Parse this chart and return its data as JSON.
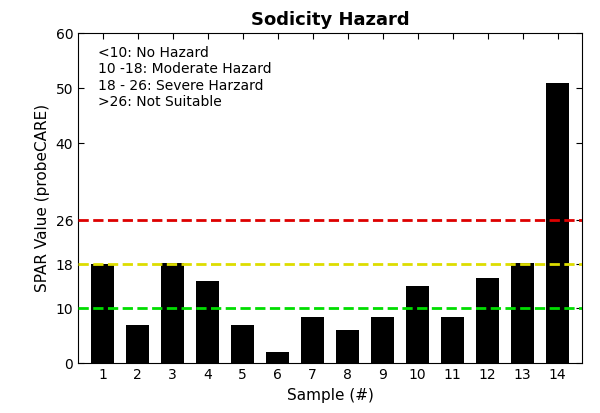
{
  "title": "Sodicity Hazard",
  "xlabel": "Sample (#)",
  "ylabel": "SPAR Value (probeCARE)",
  "categories": [
    1,
    2,
    3,
    4,
    5,
    6,
    7,
    8,
    9,
    10,
    11,
    12,
    13,
    14
  ],
  "values": [
    18.1,
    7.0,
    18.2,
    15.0,
    7.0,
    2.0,
    8.5,
    6.0,
    8.5,
    14.0,
    8.5,
    15.5,
    18.2,
    51.0
  ],
  "bar_color": "#000000",
  "ylim": [
    0,
    60
  ],
  "yticks": [
    0,
    10,
    18,
    26,
    40,
    50,
    60
  ],
  "ytick_labels": [
    "0",
    "10",
    "18",
    "26",
    "40",
    "50",
    "60"
  ],
  "hline_green": {
    "y": 10,
    "color": "#00dd00",
    "linestyle": "--",
    "linewidth": 2.0
  },
  "hline_yellow": {
    "y": 18,
    "color": "#dddd00",
    "linestyle": "--",
    "linewidth": 2.0
  },
  "hline_red": {
    "y": 26,
    "color": "#dd0000",
    "linestyle": "--",
    "linewidth": 2.0
  },
  "legend_texts": [
    "<10: No Hazard",
    "10 -18: Moderate Hazard",
    "18 - 26: Severe Harzard",
    ">26: Not Suitable"
  ],
  "title_fontsize": 13,
  "label_fontsize": 11,
  "tick_fontsize": 10,
  "legend_fontsize": 10,
  "background_color": "#ffffff"
}
